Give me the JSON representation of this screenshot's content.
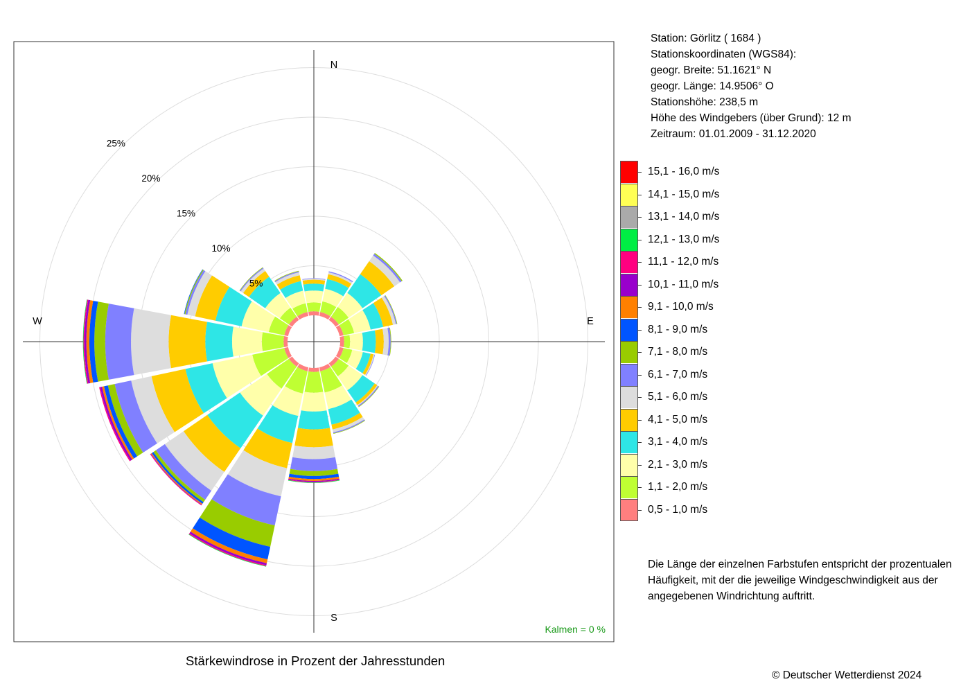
{
  "station": {
    "line1": "Station:  Görlitz  ( 1684 )",
    "line2": "Stationskoordinaten (WGS84):",
    "line3": "geogr. Breite: 51.1621° N",
    "line4": "geogr. Länge: 14.9506° O",
    "line5": "Stationshöhe: 238,5 m",
    "line6": "Höhe des Windgebers (über Grund): 12 m",
    "line7": "Zeitraum: 01.01.2009 - 31.12.2020"
  },
  "note": {
    "line1": "Die Länge der einzelnen Farbstufen entspricht der prozentualen",
    "line2": "Häufigkeit, mit der die jeweilige Windgeschwindigkeit aus der",
    "line3": "angegebenen Windrichtung auftritt."
  },
  "subtitle": "Stärkewindrose in Prozent der Jahresstunden",
  "copyright": "© Deutscher Wetterdienst  2024",
  "calm": "Kalmen  =  0 %",
  "chart_data": {
    "type": "wind_rose",
    "directions": [
      "N",
      "NNE",
      "NE",
      "ENE",
      "E",
      "ESE",
      "SE",
      "SSE",
      "S",
      "SSW",
      "SW",
      "WSW",
      "W",
      "WNW",
      "NW",
      "NNW"
    ],
    "direction_angles_deg": [
      0,
      22.5,
      45,
      67.5,
      90,
      112.5,
      135,
      157.5,
      180,
      202.5,
      225,
      247.5,
      270,
      292.5,
      315,
      337.5
    ],
    "compass_labels": [
      {
        "text": "N",
        "angle_deg": 0
      },
      {
        "text": "E",
        "angle_deg": 90
      },
      {
        "text": "S",
        "angle_deg": 180
      },
      {
        "text": "W",
        "angle_deg": 270
      }
    ],
    "rings_percent": [
      5,
      10,
      15,
      20,
      25
    ],
    "ring_labels": [
      "5%",
      "10%",
      "15%",
      "20%",
      "25%"
    ],
    "speed_classes": [
      {
        "label": "0,5 - 1,0 m/s",
        "color": "#ff7f7f"
      },
      {
        "label": "1,1 - 2,0 m/s",
        "color": "#bfff33"
      },
      {
        "label": "2,1 - 3,0 m/s",
        "color": "#ffffaa"
      },
      {
        "label": "3,1 - 4,0 m/s",
        "color": "#2ee6e6"
      },
      {
        "label": "4,1 - 5,0 m/s",
        "color": "#ffcc00"
      },
      {
        "label": "5,1 - 6,0 m/s",
        "color": "#dddddd"
      },
      {
        "label": "6,1 - 7,0 m/s",
        "color": "#8080ff"
      },
      {
        "label": "7,1 - 8,0 m/s",
        "color": "#99cc00"
      },
      {
        "label": "8,1 - 9,0 m/s",
        "color": "#0055ff"
      },
      {
        "label": "9,1 - 10,0 m/s",
        "color": "#ff8000"
      },
      {
        "label": "10,1 - 11,0 m/s",
        "color": "#9900cc"
      },
      {
        "label": "11,1 - 12,0 m/s",
        "color": "#ff0080"
      },
      {
        "label": "12,1 - 13,0 m/s",
        "color": "#00ee44"
      },
      {
        "label": "13,1 - 14,0 m/s",
        "color": "#aaaaaa"
      },
      {
        "label": "14,1 - 15,0 m/s",
        "color": "#ffff55"
      },
      {
        "label": "15,1 - 16,0 m/s",
        "color": "#ff0000"
      }
    ],
    "cumulative_percent": {
      "N": [
        0.4,
        1.3,
        2.5,
        3.2,
        3.6,
        3.7,
        3.75,
        3.75,
        3.75,
        3.75,
        3.75,
        3.75,
        3.75,
        3.75,
        3.75,
        3.75
      ],
      "NNE": [
        0.4,
        1.5,
        2.8,
        3.8,
        4.3,
        4.5,
        4.6,
        4.6,
        4.6,
        4.6,
        4.6,
        4.6,
        4.6,
        4.6,
        4.6,
        4.6
      ],
      "NE": [
        0.4,
        1.6,
        3.3,
        5.6,
        7.2,
        7.9,
        8.1,
        8.2,
        8.2,
        8.2,
        8.2,
        8.2,
        8.2,
        8.2,
        8.2,
        8.2
      ],
      "ENE": [
        0.4,
        1.5,
        3.2,
        4.5,
        5.5,
        5.8,
        5.9,
        5.95,
        5.95,
        5.95,
        5.95,
        5.95,
        5.95,
        5.95,
        5.95,
        5.95
      ],
      "E": [
        0.4,
        1.0,
        2.3,
        3.6,
        4.4,
        4.9,
        5.1,
        5.15,
        5.15,
        5.15,
        5.15,
        5.15,
        5.15,
        5.15,
        5.15,
        5.15
      ],
      "ESE": [
        0.4,
        1.3,
        2.4,
        3.2,
        3.5,
        3.6,
        3.65,
        3.65,
        3.65,
        3.65,
        3.65,
        3.65,
        3.65,
        3.65,
        3.65,
        3.65
      ],
      "SE": [
        0.4,
        1.6,
        3.3,
        4.8,
        5.1,
        5.2,
        5.3,
        5.35,
        5.35,
        5.35,
        5.35,
        5.35,
        5.35,
        5.35,
        5.35,
        5.35
      ],
      "SSE": [
        0.4,
        2.6,
        4.3,
        5.9,
        6.4,
        6.7,
        6.8,
        6.85,
        6.85,
        6.85,
        6.85,
        6.85,
        6.85,
        6.85,
        6.85,
        6.85
      ],
      "S": [
        0.4,
        2.5,
        4.4,
        6.2,
        8.0,
        9.2,
        10.4,
        10.9,
        11.2,
        11.4,
        11.5,
        11.55,
        11.6,
        11.6,
        11.6,
        11.6
      ],
      "SSW": [
        0.4,
        2.7,
        5.0,
        7.8,
        10.4,
        13.3,
        16.3,
        18.5,
        19.8,
        20.2,
        20.4,
        20.5,
        20.55,
        20.55,
        20.55,
        20.55
      ],
      "SW": [
        0.4,
        3.1,
        6.4,
        10.4,
        13.3,
        15.6,
        16.7,
        17.0,
        17.2,
        17.3,
        17.35,
        17.4,
        17.4,
        17.4,
        17.4,
        17.4
      ],
      "WSW": [
        0.4,
        3.7,
        7.8,
        10.6,
        14.1,
        16.2,
        17.9,
        18.6,
        19.0,
        19.2,
        19.4,
        19.5,
        19.5,
        19.5,
        19.5,
        19.5
      ],
      "W": [
        0.4,
        2.6,
        5.6,
        8.3,
        12.0,
        15.8,
        18.4,
        19.5,
        20.0,
        20.3,
        20.5,
        20.6,
        20.65,
        20.65,
        20.65,
        20.65
      ],
      "WNW": [
        0.4,
        2.0,
        4.8,
        7.5,
        9.6,
        10.4,
        10.6,
        10.7,
        10.75,
        10.75,
        10.75,
        10.75,
        10.75,
        10.75,
        10.75,
        10.75
      ],
      "NW": [
        0.4,
        1.5,
        3.3,
        5.3,
        6.0,
        6.3,
        6.4,
        6.45,
        6.45,
        6.45,
        6.45,
        6.45,
        6.45,
        6.45,
        6.45,
        6.45
      ],
      "NNW": [
        0.4,
        1.3,
        2.6,
        3.6,
        4.2,
        4.5,
        4.6,
        4.65,
        4.65,
        4.65,
        4.65,
        4.65,
        4.65,
        4.65,
        4.65,
        4.65
      ]
    }
  }
}
